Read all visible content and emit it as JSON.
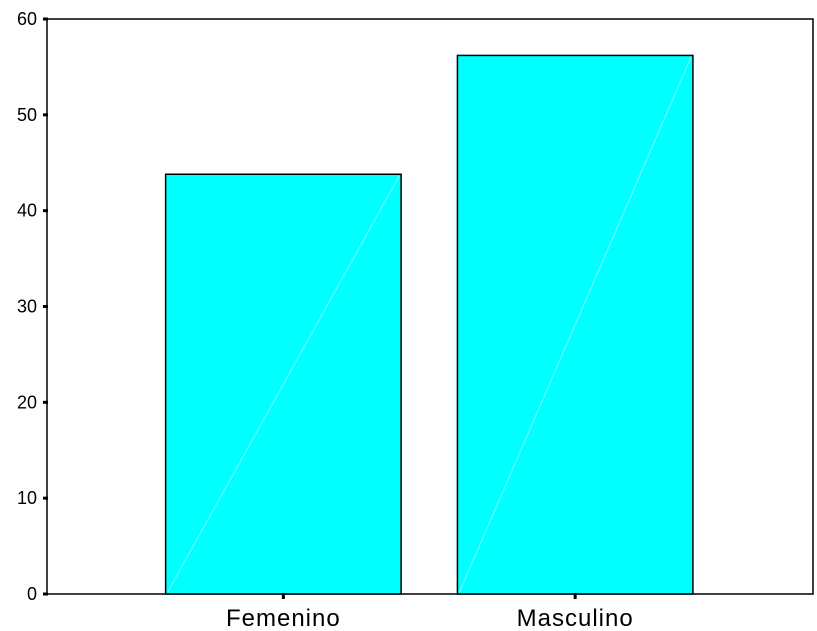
{
  "chart_data": {
    "type": "bar",
    "title": "",
    "xlabel": "",
    "ylabel": "",
    "categories": [
      "Femenino",
      "Masculino"
    ],
    "values": [
      43.8,
      56.2
    ],
    "ylim": [
      0,
      60
    ],
    "yticks": [
      0,
      10,
      20,
      30,
      40,
      50,
      60
    ],
    "ytick_labels": [
      "0",
      "10",
      "20",
      "30",
      "40",
      "50",
      "60"
    ],
    "grid": false,
    "legend": "none",
    "bar_color": "#00FFFF",
    "bar_edge_color": "#000000",
    "frame": "box"
  }
}
